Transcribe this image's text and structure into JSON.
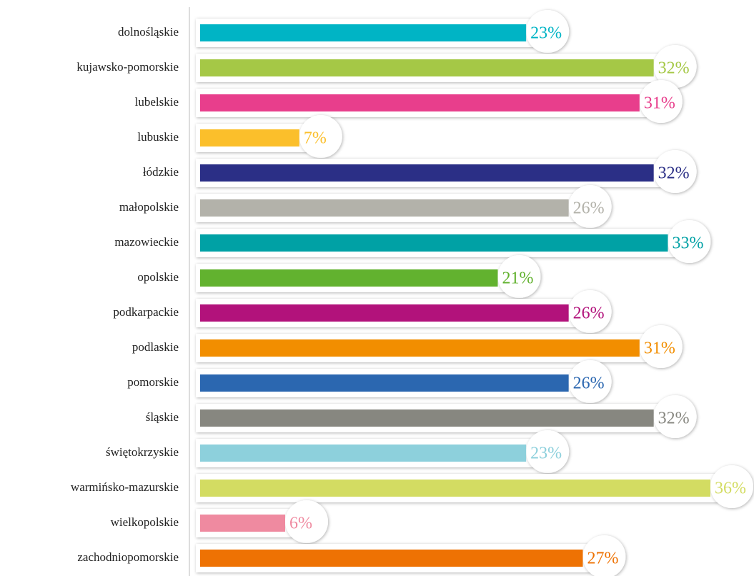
{
  "chart_data": {
    "type": "hbar",
    "categories": [
      "dolnośląskie",
      "kujawsko-pomorskie",
      "lubelskie",
      "lubuskie",
      "łódzkie",
      "małopolskie",
      "mazowieckie",
      "opolskie",
      "podkarpackie",
      "podlaskie",
      "pomorskie",
      "śląskie",
      "świętokrzyskie",
      "warmińsko-mazurskie",
      "wielkopolskie",
      "zachodniopomorskie"
    ],
    "values": [
      23,
      32,
      31,
      7,
      32,
      26,
      33,
      21,
      26,
      31,
      26,
      32,
      23,
      36,
      6,
      27
    ],
    "value_labels": [
      "23%",
      "32%",
      "31%",
      "7%",
      "32%",
      "26%",
      "33%",
      "21%",
      "26%",
      "31%",
      "26%",
      "32%",
      "23%",
      "36%",
      "6%",
      "27%"
    ],
    "colors": [
      "#00b4c5",
      "#a5c846",
      "#e83e8c",
      "#fbbf2b",
      "#2b2f86",
      "#b3b2aa",
      "#00a1a5",
      "#62b22f",
      "#b2127b",
      "#f28e00",
      "#2b67b0",
      "#878780",
      "#8dd0dc",
      "#d3dc62",
      "#ef8aa0",
      "#ee7203"
    ]
  }
}
